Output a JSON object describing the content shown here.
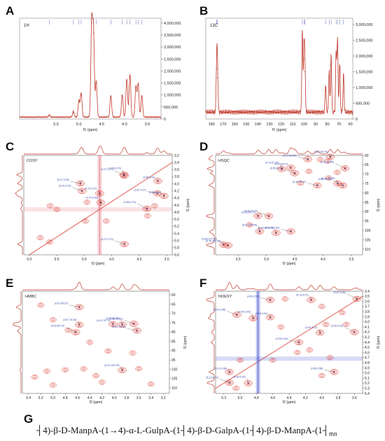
{
  "panels": {
    "A": {
      "letter": "A",
      "tag": "1H",
      "xlabel": "f1 (ppm)",
      "xticks": [
        "5.5",
        "5.0",
        "4.5",
        "4.0",
        "3.5"
      ],
      "yticks": [
        "4,000,000",
        "3,500,000",
        "3,000,000",
        "2,500,000",
        "2,000,000",
        "1,500,000",
        "1,000,000",
        "500,000",
        "0"
      ]
    },
    "B": {
      "letter": "B",
      "tag": "13C",
      "xlabel": "f1 (ppm)",
      "xticks": [
        "180",
        "170",
        "160",
        "150",
        "140",
        "130",
        "120",
        "110",
        "100",
        "90",
        "80",
        "70",
        "60"
      ],
      "yticks": [
        "3,000,000",
        "2,500,000",
        "2,000,000",
        "1,500,000",
        "1,000,000",
        "500,000",
        "0"
      ]
    },
    "C": {
      "letter": "C",
      "tag": "COSY",
      "xlabel": "f2 (ppm)",
      "ylabel": "f1 (ppm)",
      "xticks": [
        "6.0",
        "5.5",
        "5.0",
        "4.5",
        "4.0",
        "3.5"
      ],
      "yticks": [
        "3.2",
        "3.4",
        "3.6",
        "3.8",
        "4.0",
        "4.2",
        "4.4",
        "4.6",
        "4.8",
        "5.0",
        "5.2",
        "5.4",
        "5.6",
        "5.8",
        "6.0"
      ]
    },
    "D": {
      "letter": "D",
      "tag": "HSQC",
      "xlabel": "f2 (ppm)",
      "ylabel": "f1 (ppm)",
      "xticks": [
        "5.5",
        "5.0",
        "4.5",
        "4.0",
        "3.5"
      ],
      "yticks": [
        "60",
        "65",
        "70",
        "75",
        "80",
        "85",
        "90",
        "95",
        "100",
        "105",
        "110"
      ]
    },
    "E": {
      "letter": "E",
      "tag": "HMBC",
      "xlabel": "f2 (ppm)",
      "ylabel": "f1 (ppm)",
      "xticks": [
        "5.4",
        "5.2",
        "5.0",
        "4.8",
        "4.6",
        "4.4",
        "4.2",
        "4.0",
        "3.8",
        "3.6",
        "3.4",
        "3.2"
      ],
      "yticks": [
        "60",
        "65",
        "70",
        "75",
        "80",
        "85",
        "90",
        "95",
        "100",
        "105",
        "110"
      ]
    },
    "F": {
      "letter": "F",
      "tag": "NOESY",
      "xlabel": "f2 (ppm)",
      "ylabel": "f1 (ppm)",
      "xticks": [
        "5.2",
        "5.0",
        "4.8",
        "4.6",
        "4.4",
        "4.2",
        "4.0",
        "3.8",
        "3.6"
      ],
      "yticks": [
        "3.4",
        "3.5",
        "3.6",
        "3.7",
        "3.8",
        "3.9",
        "4.0",
        "4.1",
        "4.2",
        "4.3",
        "4.4",
        "4.5",
        "4.6",
        "4.7",
        "4.8",
        "4.9",
        "5.0",
        "5.1",
        "5.2",
        "5.3",
        "5.4"
      ]
    }
  },
  "G": {
    "letter": "G",
    "formula": "┤4)-β-D-ManpA-(1→4)-α-L-GulpA-(1┤4)-β-D-GalpA-(1┤4)-β-D-ManpA-(1┤",
    "sub_m": "m",
    "sub_n": "n"
  },
  "colors": {
    "spectrum": "#c0392b",
    "contour": "#d62a1e",
    "noesy_neg": "#2233cc",
    "label": "#3344aa",
    "text": "#222222"
  },
  "chart_data": [
    {
      "type": "line",
      "panel": "A",
      "title": "1H",
      "xlabel": "f1 (ppm)",
      "xlim": [
        6.3,
        3.2
      ],
      "ylim": [
        0,
        4200000
      ],
      "peaks": [
        {
          "x": 4.72,
          "y": 4000000
        },
        {
          "x": 4.68,
          "y": 3600000
        },
        {
          "x": 4.62,
          "y": 1500000
        },
        {
          "x": 5.0,
          "y": 700000
        },
        {
          "x": 4.95,
          "y": 1000000
        },
        {
          "x": 5.12,
          "y": 250000
        },
        {
          "x": 5.65,
          "y": 100000
        },
        {
          "x": 4.3,
          "y": 900000
        },
        {
          "x": 4.05,
          "y": 950000
        },
        {
          "x": 3.95,
          "y": 1600000
        },
        {
          "x": 3.88,
          "y": 1800000
        },
        {
          "x": 3.75,
          "y": 1300000
        },
        {
          "x": 3.7,
          "y": 1400000
        },
        {
          "x": 3.62,
          "y": 900000
        }
      ]
    },
    {
      "type": "line",
      "panel": "B",
      "title": "13C",
      "xlabel": "f1 (ppm)",
      "xlim": [
        185,
        58
      ],
      "ylim": [
        0,
        3200000
      ],
      "peaks": [
        {
          "x": 175.6,
          "y": 1600000
        },
        {
          "x": 174.9,
          "y": 1300000
        },
        {
          "x": 101.6,
          "y": 2600000
        },
        {
          "x": 100.2,
          "y": 1900000
        },
        {
          "x": 99.4,
          "y": 1500000
        },
        {
          "x": 81.5,
          "y": 900000
        },
        {
          "x": 78.4,
          "y": 1300000
        },
        {
          "x": 76.7,
          "y": 1800000
        },
        {
          "x": 72.4,
          "y": 1900000
        },
        {
          "x": 71.2,
          "y": 2300000
        },
        {
          "x": 69.3,
          "y": 1600000
        },
        {
          "x": 66.0,
          "y": 1200000
        }
      ]
    },
    {
      "type": "scatter",
      "panel": "C",
      "title": "COSY",
      "xlabel": "f2 (ppm)",
      "ylabel": "f1 (ppm)",
      "xlim": [
        6.1,
        3.4
      ],
      "ylim": [
        3.2,
        6.0
      ],
      "points": [
        {
          "x": 5.07,
          "y": 3.99,
          "label": "(5.07,3.99)"
        },
        {
          "x": 4.72,
          "y": 4.27,
          "label": "(4.72,4.27)"
        },
        {
          "x": 4.27,
          "y": 3.77,
          "label": "(4.27,3.77)"
        },
        {
          "x": 3.66,
          "y": 3.92,
          "label": "(3.66,3.92)"
        },
        {
          "x": 5.04,
          "y": 4.2,
          "label": "(5.04,4.20)"
        },
        {
          "x": 4.28,
          "y": 3.74,
          "label": "(4.28,3.74)"
        },
        {
          "x": 3.67,
          "y": 4.27,
          "label": "(3.67,4.27)"
        },
        {
          "x": 4.7,
          "y": 4.53,
          "label": "(4.70,4.53)"
        },
        {
          "x": 3.86,
          "y": 4.7,
          "label": "(3.86,4.70)"
        },
        {
          "x": 3.55,
          "y": 4.34,
          "label": "(3.55,4.34)"
        },
        {
          "x": 4.27,
          "y": 5.7,
          "label": "(4.27,5.70)"
        }
      ]
    },
    {
      "type": "scatter",
      "panel": "D",
      "title": "HSQC",
      "xlabel": "f2 (ppm)",
      "ylabel": "f1 (ppm)",
      "xlim": [
        5.9,
        3.3
      ],
      "ylim": [
        60,
        113
      ],
      "points": [
        {
          "x": 4.27,
          "y": 62.0,
          "label": "(4.27,62.00)"
        },
        {
          "x": 3.87,
          "y": 60.79,
          "label": "(3.87,60.79)"
        },
        {
          "x": 3.61,
          "y": 66.89,
          "label": "(3.61,66.89)"
        },
        {
          "x": 4.57,
          "y": 66.57,
          "label": "(4.57,66.57)"
        },
        {
          "x": 4.5,
          "y": 69.5,
          "label": "(4.50,69.50)"
        },
        {
          "x": 4.73,
          "y": 67.25,
          "label": "(4.73,67.25)"
        },
        {
          "x": 4.1,
          "y": 75.97,
          "label": "(4.10,75.97)"
        },
        {
          "x": 3.74,
          "y": 75.0,
          "label": "(3.74,75.00)"
        },
        {
          "x": 3.65,
          "y": 76.03,
          "label": "(3.65,76.03)"
        },
        {
          "x": 5.15,
          "y": 92.27,
          "label": "(5.15,92.27)"
        },
        {
          "x": 4.96,
          "y": 92.32,
          "label": "(4.96,92.32)"
        },
        {
          "x": 5.12,
          "y": 100.49,
          "label": "(5.12,100.49)"
        },
        {
          "x": 4.57,
          "y": 100.52,
          "label": "(4.57,100.52)"
        },
        {
          "x": 4.83,
          "y": 101.28,
          "label": "(4.83,101.28)"
        },
        {
          "x": 5.68,
          "y": 107.99,
          "label": "(5.68,107.99)"
        },
        {
          "x": 5.76,
          "y": 107.63,
          "label": "(5.76,107.63)"
        }
      ]
    },
    {
      "type": "scatter",
      "panel": "E",
      "title": "HMBC",
      "xlabel": "f2 (ppm)",
      "ylabel": "f1 (ppm)",
      "xlim": [
        5.5,
        3.1
      ],
      "ylim": [
        58,
        113
      ],
      "points": [
        {
          "x": 4.57,
          "y": 66.57,
          "label": "(4.57,66.57)"
        },
        {
          "x": 4.57,
          "y": 76.03,
          "label": "(4.57,76.03)"
        },
        {
          "x": 4.63,
          "y": 80.1,
          "label": "(4.63,80.10)"
        },
        {
          "x": 4.02,
          "y": 75.71,
          "label": "(4.02,75.71)"
        },
        {
          "x": 3.68,
          "y": 75.52,
          "label": "(3.68,75.52)"
        },
        {
          "x": 3.87,
          "y": 76.02,
          "label": "(3.87,76.02)"
        },
        {
          "x": 3.63,
          "y": 79.16,
          "label": "(3.63,79.16)"
        },
        {
          "x": 3.87,
          "y": 100.49,
          "label": "(3.87,100.49)"
        }
      ]
    },
    {
      "type": "scatter",
      "panel": "F",
      "title": "NOESY",
      "xlabel": "f2 (ppm)",
      "ylabel": "f1 (ppm)",
      "xlim": [
        5.3,
        3.5
      ],
      "ylim": [
        3.4,
        5.4
      ],
      "points": [
        {
          "x": 4.63,
          "y": 3.57,
          "label": "(4.63,3.57)"
        },
        {
          "x": 4.13,
          "y": 3.57,
          "label": "(4.13,3.57)"
        },
        {
          "x": 3.57,
          "y": 3.55,
          "label": "(3.57,3.55)"
        },
        {
          "x": 4.63,
          "y": 3.91,
          "label": "(4.63,3.91)"
        },
        {
          "x": 5.04,
          "y": 3.86,
          "label": "(5.04,3.86)"
        },
        {
          "x": 4.84,
          "y": 3.93,
          "label": "(4.84,3.93)"
        },
        {
          "x": 4.28,
          "y": 4.4,
          "label": "(4.28,4.40)"
        },
        {
          "x": 4.02,
          "y": 4.21,
          "label": "(4.02,4.21)"
        },
        {
          "x": 3.6,
          "y": 4.2,
          "label": "(3.60,4.20)"
        },
        {
          "x": 5.13,
          "y": 4.98,
          "label": "(5.13,4.98)"
        },
        {
          "x": 5.13,
          "y": 5.19,
          "label": "(5.13,5.19)"
        },
        {
          "x": 4.9,
          "y": 5.2,
          "label": "(4.90,5.20)"
        },
        {
          "x": 3.85,
          "y": 4.98,
          "label": "(3.85,4.98)"
        }
      ]
    }
  ]
}
